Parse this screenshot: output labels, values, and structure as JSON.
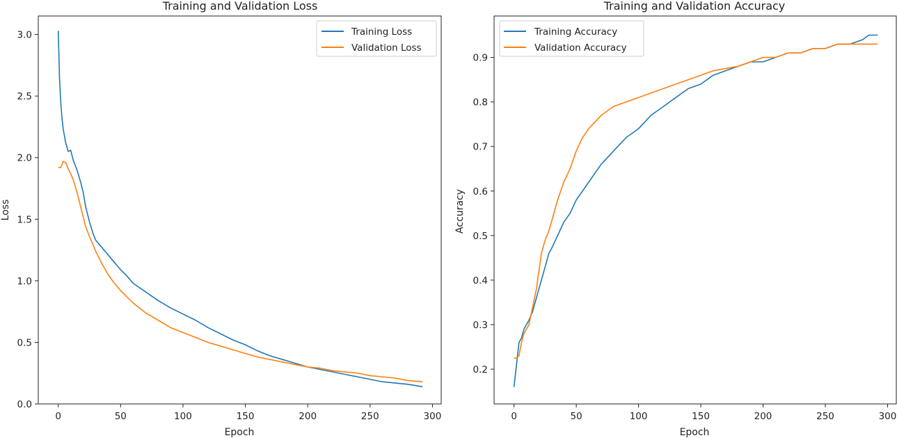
{
  "chart_data": [
    {
      "type": "line",
      "title": "Training and Validation Loss",
      "xlabel": "Epoch",
      "ylabel": "Loss",
      "xlim": [
        -16,
        307
      ],
      "ylim": [
        0.0,
        3.15
      ],
      "xticks": [
        0,
        50,
        100,
        150,
        200,
        250,
        300
      ],
      "xtick_labels": [
        "0",
        "50",
        "100",
        "150",
        "200",
        "250",
        "300"
      ],
      "yticks": [
        0.0,
        0.5,
        1.0,
        1.5,
        2.0,
        2.5,
        3.0
      ],
      "ytick_labels": [
        "0.0",
        "0.5",
        "1.0",
        "1.5",
        "2.0",
        "2.5",
        "3.0"
      ],
      "grid": false,
      "legend_position": "top-right",
      "series": [
        {
          "name": "Training Loss",
          "color": "#1f77b4",
          "x": [
            0,
            1,
            2,
            3,
            4,
            6,
            8,
            10,
            12,
            15,
            18,
            20,
            22,
            25,
            28,
            30,
            35,
            40,
            45,
            50,
            55,
            60,
            70,
            80,
            90,
            100,
            110,
            120,
            130,
            140,
            150,
            160,
            170,
            180,
            190,
            200,
            210,
            220,
            230,
            240,
            250,
            260,
            270,
            280,
            292
          ],
          "y": [
            3.03,
            2.65,
            2.45,
            2.32,
            2.23,
            2.12,
            2.05,
            2.06,
            1.98,
            1.9,
            1.8,
            1.72,
            1.6,
            1.48,
            1.38,
            1.33,
            1.27,
            1.21,
            1.15,
            1.09,
            1.04,
            0.98,
            0.91,
            0.84,
            0.78,
            0.73,
            0.68,
            0.62,
            0.57,
            0.52,
            0.48,
            0.43,
            0.39,
            0.36,
            0.33,
            0.3,
            0.28,
            0.26,
            0.24,
            0.22,
            0.2,
            0.18,
            0.17,
            0.16,
            0.14
          ]
        },
        {
          "name": "Validation Loss",
          "color": "#ff7f0e",
          "x": [
            0,
            2,
            4,
            6,
            8,
            10,
            12,
            15,
            18,
            20,
            22,
            25,
            28,
            30,
            35,
            40,
            45,
            50,
            55,
            60,
            70,
            80,
            90,
            100,
            110,
            120,
            130,
            140,
            150,
            160,
            170,
            180,
            190,
            200,
            210,
            220,
            230,
            240,
            250,
            260,
            270,
            280,
            292
          ],
          "y": [
            1.92,
            1.92,
            1.97,
            1.96,
            1.91,
            1.87,
            1.82,
            1.72,
            1.6,
            1.52,
            1.44,
            1.36,
            1.29,
            1.24,
            1.14,
            1.05,
            0.98,
            0.92,
            0.87,
            0.82,
            0.74,
            0.68,
            0.62,
            0.58,
            0.54,
            0.5,
            0.47,
            0.44,
            0.41,
            0.38,
            0.36,
            0.34,
            0.32,
            0.3,
            0.29,
            0.27,
            0.26,
            0.25,
            0.23,
            0.22,
            0.21,
            0.19,
            0.18
          ]
        }
      ]
    },
    {
      "type": "line",
      "title": "Training and Validation Accuracy",
      "xlabel": "Epoch",
      "ylabel": "Accuracy",
      "xlim": [
        -16,
        307
      ],
      "ylim": [
        0.122,
        0.993
      ],
      "xticks": [
        0,
        50,
        100,
        150,
        200,
        250,
        300
      ],
      "xtick_labels": [
        "0",
        "50",
        "100",
        "150",
        "200",
        "250",
        "300"
      ],
      "yticks": [
        0.2,
        0.3,
        0.4,
        0.5,
        0.6,
        0.7,
        0.8,
        0.9
      ],
      "ytick_labels": [
        "0.2",
        "0.3",
        "0.4",
        "0.5",
        "0.6",
        "0.7",
        "0.8",
        "0.9"
      ],
      "grid": false,
      "legend_position": "top-left",
      "series": [
        {
          "name": "Training Accuracy",
          "color": "#1f77b4",
          "x": [
            0,
            2,
            4,
            6,
            8,
            10,
            12,
            15,
            18,
            20,
            22,
            25,
            28,
            30,
            35,
            40,
            45,
            50,
            55,
            60,
            70,
            80,
            90,
            100,
            110,
            120,
            130,
            140,
            150,
            160,
            170,
            180,
            190,
            200,
            210,
            220,
            230,
            240,
            250,
            260,
            270,
            280,
            285,
            292
          ],
          "y": [
            0.16,
            0.21,
            0.26,
            0.27,
            0.29,
            0.3,
            0.31,
            0.33,
            0.36,
            0.38,
            0.4,
            0.43,
            0.46,
            0.47,
            0.5,
            0.53,
            0.55,
            0.58,
            0.6,
            0.62,
            0.66,
            0.69,
            0.72,
            0.74,
            0.77,
            0.79,
            0.81,
            0.83,
            0.84,
            0.86,
            0.87,
            0.88,
            0.89,
            0.89,
            0.9,
            0.91,
            0.91,
            0.92,
            0.92,
            0.93,
            0.93,
            0.94,
            0.95,
            0.95
          ]
        },
        {
          "name": "Validation Accuracy",
          "color": "#ff7f0e",
          "x": [
            0,
            2,
            4,
            6,
            8,
            10,
            12,
            15,
            18,
            20,
            22,
            25,
            28,
            30,
            35,
            40,
            45,
            50,
            55,
            60,
            70,
            80,
            90,
            100,
            110,
            120,
            130,
            140,
            150,
            160,
            170,
            180,
            190,
            200,
            210,
            220,
            230,
            240,
            250,
            260,
            270,
            280,
            285,
            292
          ],
          "y": [
            0.225,
            0.225,
            0.23,
            0.26,
            0.28,
            0.29,
            0.3,
            0.34,
            0.38,
            0.42,
            0.46,
            0.49,
            0.51,
            0.53,
            0.58,
            0.62,
            0.65,
            0.69,
            0.72,
            0.74,
            0.77,
            0.79,
            0.8,
            0.81,
            0.82,
            0.83,
            0.84,
            0.85,
            0.86,
            0.87,
            0.875,
            0.88,
            0.89,
            0.9,
            0.9,
            0.91,
            0.91,
            0.92,
            0.92,
            0.93,
            0.93,
            0.93,
            0.93,
            0.93
          ]
        }
      ]
    }
  ]
}
